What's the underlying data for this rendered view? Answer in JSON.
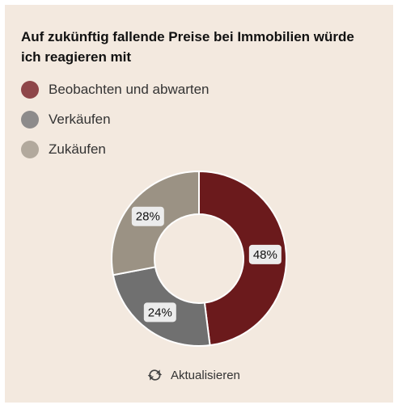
{
  "chart_data": {
    "type": "pie",
    "title": "Auf zukünftig fallende Preise bei Immobilien würde ich reagieren mit",
    "categories": [
      "Beobachten und abwarten",
      "Verkäufen",
      "Zukäufen"
    ],
    "values": [
      48,
      24,
      28
    ],
    "value_labels": [
      "48%",
      "24%",
      "28%"
    ],
    "colors": [
      "#6b1a1c",
      "#707070",
      "#9b9284"
    ],
    "legend_colors": [
      "#8e4649",
      "#8d8b8b",
      "#b2a99d"
    ],
    "legend_placement": "top-left",
    "donut": true
  },
  "footer": {
    "refresh_label": "Aktualisieren",
    "refresh_icon": "refresh-icon"
  }
}
